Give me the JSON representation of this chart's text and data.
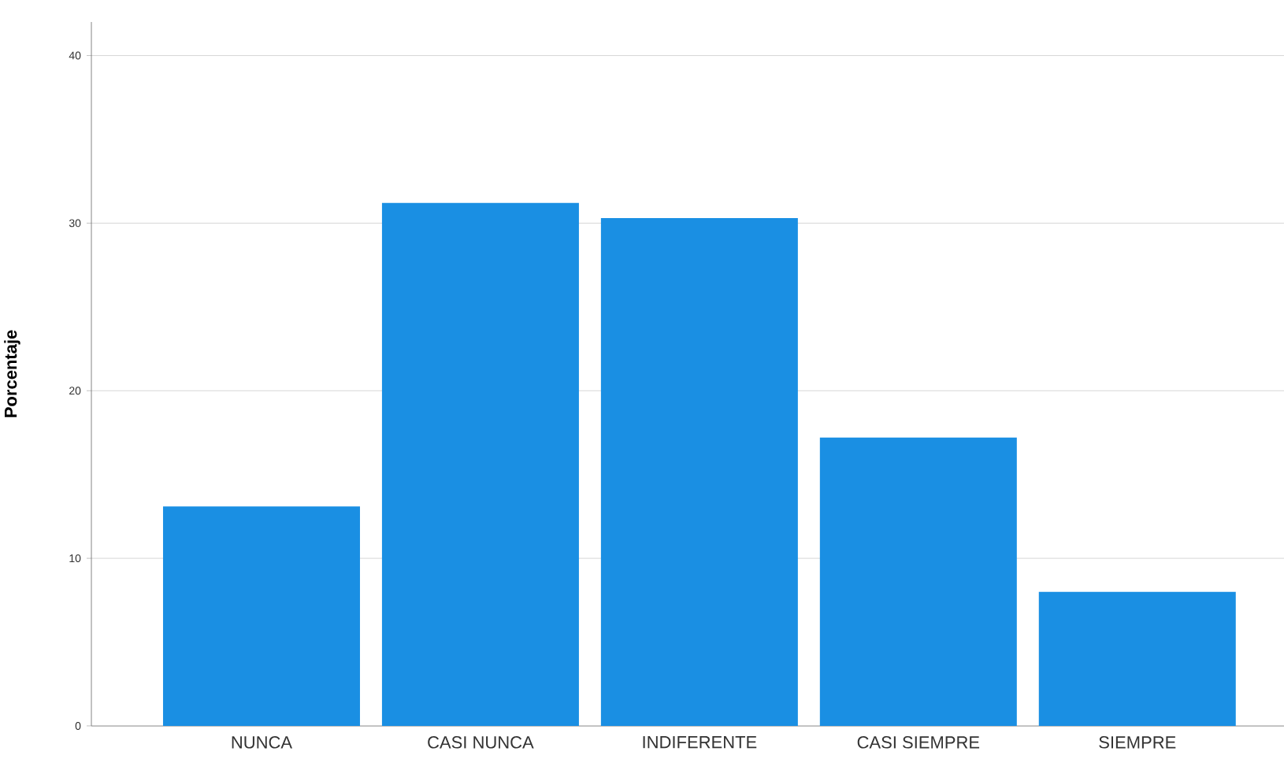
{
  "chart_data": {
    "type": "bar",
    "ylabel": "Porcentaje",
    "categories": [
      "NUNCA",
      "CASI NUNCA",
      "INDIFERENTE",
      "CASI SIEMPRE",
      "SIEMPRE"
    ],
    "values": [
      13.1,
      31.2,
      30.3,
      17.2,
      8.0
    ],
    "color": "#1a8fe3",
    "ylim": [
      0,
      42
    ],
    "yticks": [
      0,
      10,
      20,
      30,
      40
    ],
    "grid": "y"
  }
}
